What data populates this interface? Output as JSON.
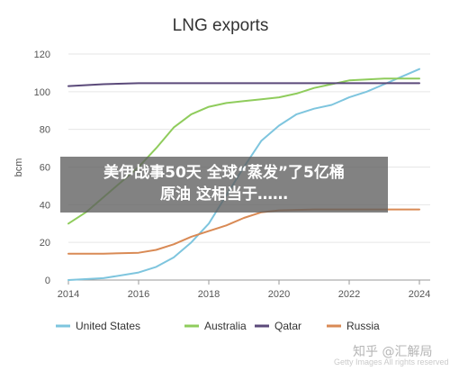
{
  "chart_data": {
    "type": "line",
    "title": "LNG exports",
    "ylabel": "bcm",
    "xlabel": "",
    "xlim": [
      2014,
      2024
    ],
    "ylim": [
      0,
      120
    ],
    "x_ticks": [
      2014,
      2016,
      2018,
      2020,
      2022,
      2024
    ],
    "y_ticks": [
      0,
      20,
      40,
      60,
      80,
      100,
      120
    ],
    "grid": "horizontal",
    "legend_position": "bottom",
    "series": [
      {
        "name": "United States",
        "color": "#7ec5de",
        "points": [
          [
            2014,
            0
          ],
          [
            2015,
            1
          ],
          [
            2016,
            4
          ],
          [
            2016.5,
            7
          ],
          [
            2017,
            12
          ],
          [
            2017.5,
            20
          ],
          [
            2018,
            30
          ],
          [
            2018.5,
            45
          ],
          [
            2019,
            60
          ],
          [
            2019.5,
            74
          ],
          [
            2020,
            82
          ],
          [
            2020.5,
            88
          ],
          [
            2021,
            91
          ],
          [
            2021.5,
            93
          ],
          [
            2022,
            97
          ],
          [
            2022.5,
            100
          ],
          [
            2023,
            104
          ],
          [
            2023.5,
            108
          ],
          [
            2024,
            112
          ]
        ]
      },
      {
        "name": "Australia",
        "color": "#8fcc5c",
        "points": [
          [
            2014,
            30
          ],
          [
            2014.5,
            36
          ],
          [
            2015,
            44
          ],
          [
            2015.5,
            52
          ],
          [
            2016,
            60
          ],
          [
            2016.5,
            70
          ],
          [
            2017,
            81
          ],
          [
            2017.5,
            88
          ],
          [
            2018,
            92
          ],
          [
            2018.5,
            94
          ],
          [
            2019,
            95
          ],
          [
            2019.5,
            96
          ],
          [
            2020,
            97
          ],
          [
            2020.5,
            99
          ],
          [
            2021,
            102
          ],
          [
            2021.5,
            104
          ],
          [
            2022,
            106
          ],
          [
            2023,
            107
          ],
          [
            2024,
            107
          ]
        ]
      },
      {
        "name": "Qatar",
        "color": "#5b4a7a",
        "points": [
          [
            2014,
            103
          ],
          [
            2015,
            104
          ],
          [
            2016,
            104.5
          ],
          [
            2017,
            104.5
          ],
          [
            2018,
            104.5
          ],
          [
            2019,
            104.5
          ],
          [
            2020,
            104.5
          ],
          [
            2021,
            104.5
          ],
          [
            2022,
            104.5
          ],
          [
            2023,
            104.5
          ],
          [
            2024,
            104.5
          ]
        ]
      },
      {
        "name": "Russia",
        "color": "#d98a55",
        "points": [
          [
            2014,
            14
          ],
          [
            2015,
            14
          ],
          [
            2016,
            14.5
          ],
          [
            2016.5,
            16
          ],
          [
            2017,
            19
          ],
          [
            2017.5,
            23
          ],
          [
            2018,
            26
          ],
          [
            2018.5,
            29
          ],
          [
            2019,
            33
          ],
          [
            2019.5,
            36
          ],
          [
            2020,
            37
          ],
          [
            2021,
            37.5
          ],
          [
            2022,
            37.5
          ],
          [
            2023,
            37.5
          ],
          [
            2024,
            37.5
          ]
        ]
      }
    ]
  },
  "overlay": {
    "headline_line1": "美伊战事50天 全球“蒸发”了5亿桶",
    "headline_line2": "原油 这相当于……"
  },
  "watermark": {
    "text": "知乎 @汇解局",
    "sub": "Getty Images All rights reserved"
  }
}
